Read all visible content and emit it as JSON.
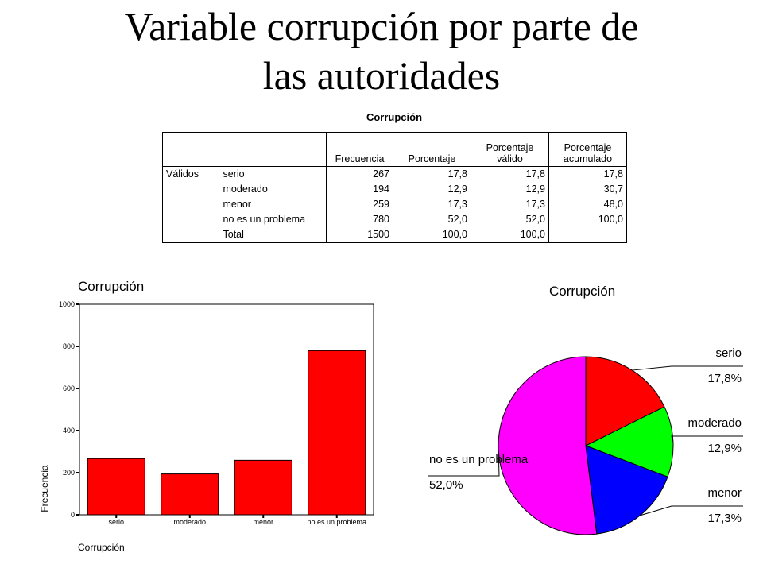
{
  "slide": {
    "title_line1": "Variable corrupción por parte de",
    "title_line2": "las autoridades"
  },
  "table": {
    "caption": "Corrupción",
    "headers": [
      "Frecuencia",
      "Porcentaje",
      "Porcentaje válido",
      "Porcentaje acumulado"
    ],
    "header_lines": [
      [
        "Frecuencia"
      ],
      [
        "Porcentaje"
      ],
      [
        "Porcentaje",
        "válido"
      ],
      [
        "Porcentaje",
        "acumulado"
      ]
    ],
    "group_label": "Válidos",
    "rows": [
      {
        "label": "serio",
        "freq": "267",
        "pct": "17,8",
        "valid": "17,8",
        "cum": "17,8"
      },
      {
        "label": "moderado",
        "freq": "194",
        "pct": "12,9",
        "valid": "12,9",
        "cum": "30,7"
      },
      {
        "label": "menor",
        "freq": "259",
        "pct": "17,3",
        "valid": "17,3",
        "cum": "48,0"
      },
      {
        "label": "no es un problema",
        "freq": "780",
        "pct": "52,0",
        "valid": "52,0",
        "cum": "100,0"
      },
      {
        "label": "Total",
        "freq": "1500",
        "pct": "100,0",
        "valid": "100,0",
        "cum": ""
      }
    ]
  },
  "chart_data": [
    {
      "type": "bar",
      "title": "Corrupción",
      "categories": [
        "serio",
        "moderado",
        "menor",
        "no es un problema"
      ],
      "values": [
        267,
        194,
        259,
        780
      ],
      "xlabel": "Corrupción",
      "ylabel": "Frecuencia",
      "ylim": [
        0,
        1000
      ],
      "yticks": [
        0,
        200,
        400,
        600,
        800,
        1000
      ],
      "bar_color": "#ff0000"
    },
    {
      "type": "pie",
      "title": "Corrupción",
      "slices": [
        {
          "label": "serio",
          "value": 17.8,
          "display": "17,8%",
          "color": "#ff0000"
        },
        {
          "label": "moderado",
          "value": 12.9,
          "display": "12,9%",
          "color": "#00ff00"
        },
        {
          "label": "menor",
          "value": 17.3,
          "display": "17,3%",
          "color": "#0000ff"
        },
        {
          "label": "no es un problema",
          "value": 52.0,
          "display": "52,0%",
          "color": "#ff00ff"
        }
      ]
    }
  ]
}
